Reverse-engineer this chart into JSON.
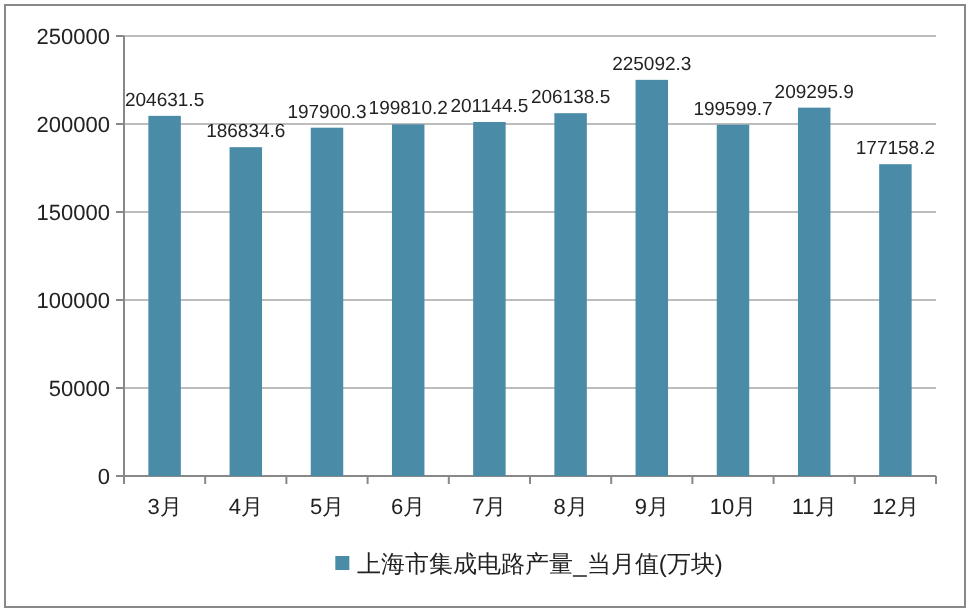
{
  "chart_data": {
    "type": "bar",
    "categories": [
      "3月",
      "4月",
      "5月",
      "6月",
      "7月",
      "8月",
      "9月",
      "10月",
      "11月",
      "12月"
    ],
    "series": [
      {
        "name": "上海市集成电路产量_当月值(万块)",
        "color": "#4a8ba8",
        "values": [
          204631.5,
          186834.6,
          197900.3,
          199810.2,
          201144.5,
          206138.5,
          225092.3,
          199599.7,
          209295.9,
          177158.2
        ]
      }
    ],
    "ylim": [
      0,
      250000
    ],
    "yticks": [
      0,
      50000,
      100000,
      150000,
      200000,
      250000
    ],
    "grid": "y",
    "legend": "bottom",
    "data_labels": true
  }
}
